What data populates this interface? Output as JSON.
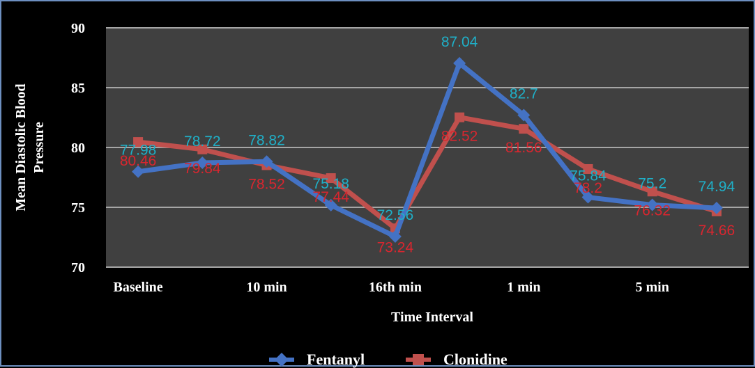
{
  "chart_data": {
    "type": "line",
    "title": "",
    "xlabel": "Time Interval",
    "ylabel": "Mean Diastolic Blood Pressure",
    "categories": [
      "Baseline",
      "",
      "10 min",
      "",
      "16th min",
      "",
      "1 min",
      "",
      "5 min",
      ""
    ],
    "ylim": [
      70,
      90
    ],
    "yticks": [
      "70",
      "75",
      "80",
      "85",
      "90"
    ],
    "grid": true,
    "legend_position": "bottom",
    "background": "#000000",
    "plot_background": "#404040",
    "series": [
      {
        "name": "Fentanyl",
        "color": "#4472c4",
        "label_color": "#1fb0c8",
        "marker": "diamond",
        "values": [
          77.98,
          78.72,
          78.82,
          75.18,
          72.56,
          87.04,
          82.7,
          75.84,
          75.2,
          74.94
        ],
        "labels": [
          "77.98",
          "78.72",
          "78.82",
          "75.18",
          "72.56",
          "87.04",
          "82.7",
          "75.84",
          "75.2",
          "74.94"
        ]
      },
      {
        "name": "Clonidine",
        "color": "#c0504d",
        "label_color": "#d9262f",
        "marker": "square",
        "values": [
          80.46,
          79.84,
          78.52,
          77.44,
          73.24,
          82.52,
          81.56,
          78.2,
          76.32,
          74.66
        ],
        "labels": [
          "80.46",
          "79.84",
          "78.52",
          "77.44",
          "73.24",
          "82.52",
          "81.56",
          "78.2",
          "76.32",
          "74.66"
        ]
      }
    ]
  }
}
